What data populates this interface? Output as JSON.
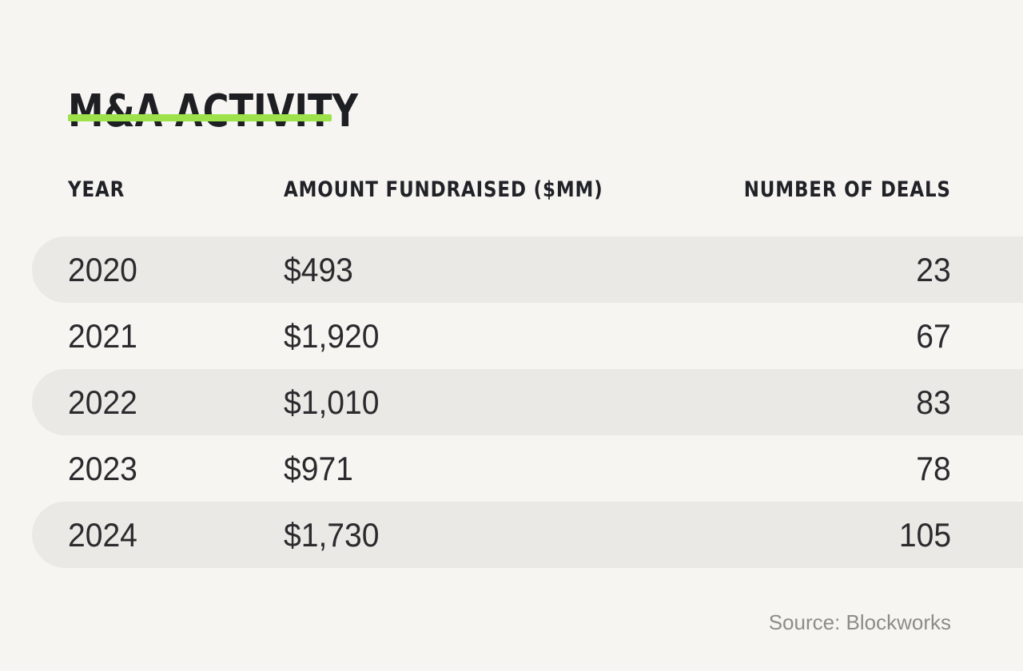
{
  "title": "M&A ACTIVITY",
  "source": "Source: Blockworks",
  "colors": {
    "background": "#f6f5f2",
    "row_band": "#eae9e6",
    "accent_green": "#9ee24b",
    "title_text": "#1e1f23",
    "row_text": "#2b2b2e",
    "source_text": "#8d8c88"
  },
  "chart_data": {
    "type": "table",
    "title": "M&A ACTIVITY",
    "columns": [
      "YEAR",
      "AMOUNT FUNDRAISED ($MM)",
      "NUMBER OF DEALS"
    ],
    "rows": [
      [
        "2020",
        "$493",
        "23"
      ],
      [
        "2021",
        "$1,920",
        "67"
      ],
      [
        "2022",
        "$1,010",
        "83"
      ],
      [
        "2023",
        "$971",
        "78"
      ],
      [
        "2024",
        "$1,730",
        "105"
      ]
    ],
    "numeric": {
      "years": [
        2020,
        2021,
        2022,
        2023,
        2024
      ],
      "amount_fundraised_mm": [
        493,
        1920,
        1010,
        971,
        1730
      ],
      "number_of_deals": [
        23,
        67,
        83,
        78,
        105
      ]
    },
    "source": "Source: Blockworks",
    "layout_hints": {
      "shaded_row_indexes": [
        0,
        2,
        4
      ],
      "deals_column_alignment": "right",
      "row_band_shape": "left-rounded-pill-bleeds-right"
    }
  }
}
